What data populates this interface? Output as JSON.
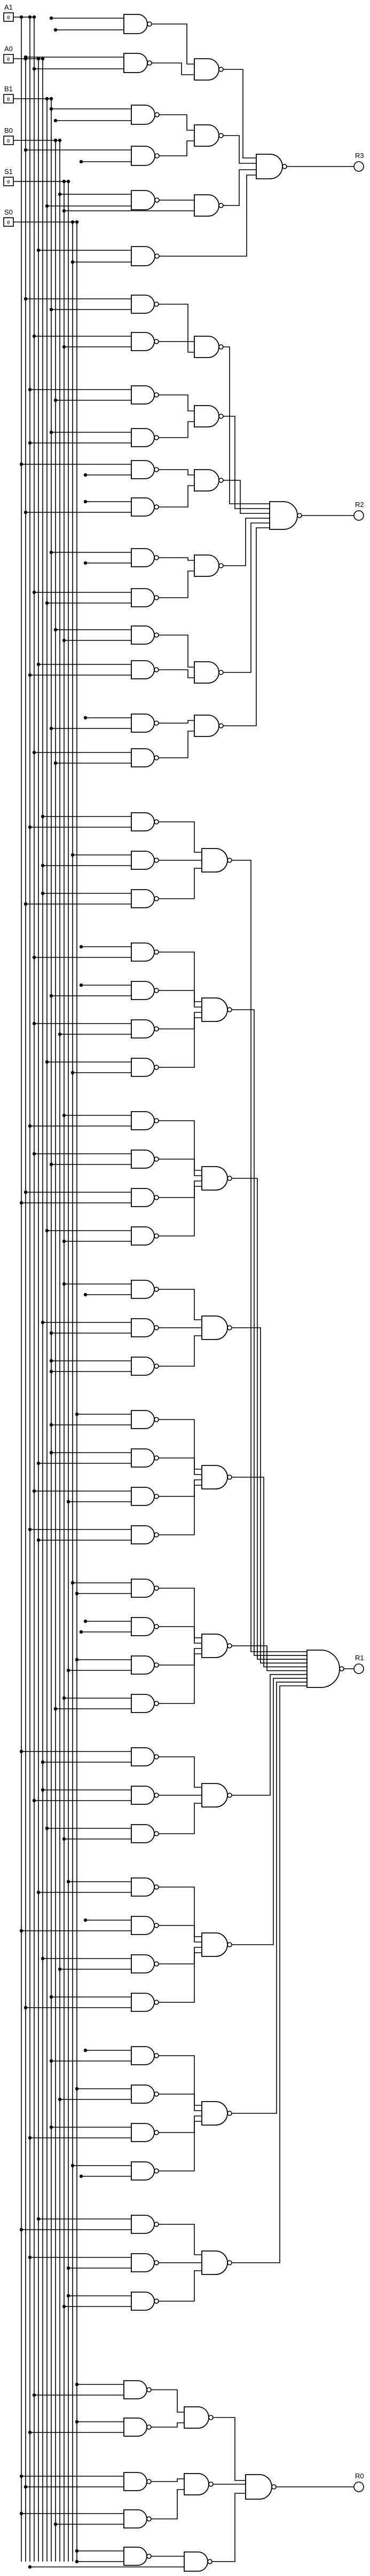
{
  "inputs": [
    {
      "label": "A1",
      "value": "0"
    },
    {
      "label": "A0",
      "value": "0"
    },
    {
      "label": "B1",
      "value": "0"
    },
    {
      "label": "B0",
      "value": "0"
    },
    {
      "label": "S1",
      "value": "0"
    },
    {
      "label": "S0",
      "value": "0"
    }
  ],
  "outputs": [
    {
      "label": "R3"
    },
    {
      "label": "R2"
    },
    {
      "label": "R1"
    },
    {
      "label": "R0"
    }
  ]
}
